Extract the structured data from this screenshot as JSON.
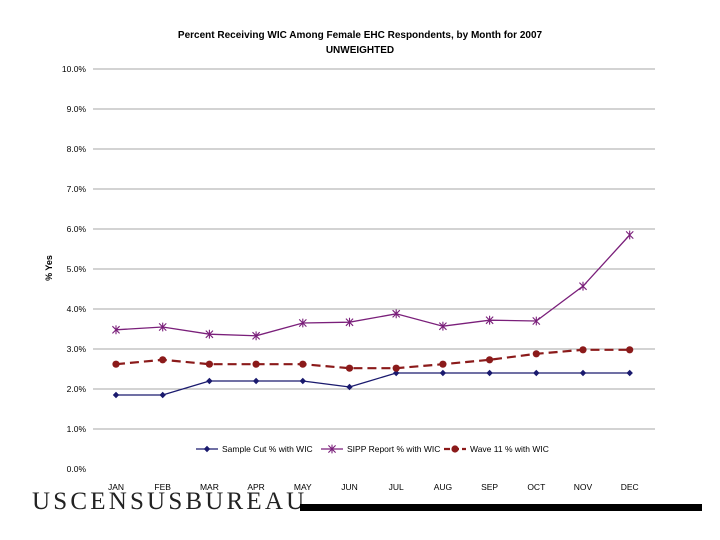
{
  "chart_data": {
    "type": "line",
    "title": "Percent Receiving WIC Among Female EHC Respondents, by Month for 2007",
    "subtitle": "UNWEIGHTED",
    "ylabel": "% Yes",
    "xlabel": "",
    "categories": [
      "JAN",
      "FEB",
      "MAR",
      "APR",
      "MAY",
      "JUN",
      "JUL",
      "AUG",
      "SEP",
      "OCT",
      "NOV",
      "DEC"
    ],
    "ylim": [
      0,
      10
    ],
    "yticks": [
      "0.0%",
      "1.0%",
      "2.0%",
      "3.0%",
      "4.0%",
      "5.0%",
      "6.0%",
      "7.0%",
      "8.0%",
      "9.0%",
      "10.0%"
    ],
    "grid": "horizontal",
    "legend_position": "bottom",
    "series": [
      {
        "name": "Sample Cut % with WIC",
        "color": "#1a1a6e",
        "marker": "diamond",
        "dash": "solid",
        "values": [
          1.85,
          1.85,
          2.2,
          2.2,
          2.2,
          2.05,
          2.4,
          2.4,
          2.4,
          2.4,
          2.4,
          2.4
        ]
      },
      {
        "name": "SIPP Report % with WIC",
        "color": "#7a1f7a",
        "marker": "star",
        "dash": "solid",
        "values": [
          3.48,
          3.55,
          3.37,
          3.33,
          3.65,
          3.67,
          3.88,
          3.57,
          3.72,
          3.7,
          4.57,
          5.85
        ]
      },
      {
        "name": "Wave 11 % with WIC",
        "color": "#8b1a1a",
        "marker": "circle",
        "dash": "dashed",
        "values": [
          2.62,
          2.73,
          2.62,
          2.62,
          2.62,
          2.52,
          2.52,
          2.62,
          2.73,
          2.88,
          2.98,
          2.98
        ]
      }
    ]
  },
  "logo": {
    "text": "USCENSUSBUREAU"
  }
}
